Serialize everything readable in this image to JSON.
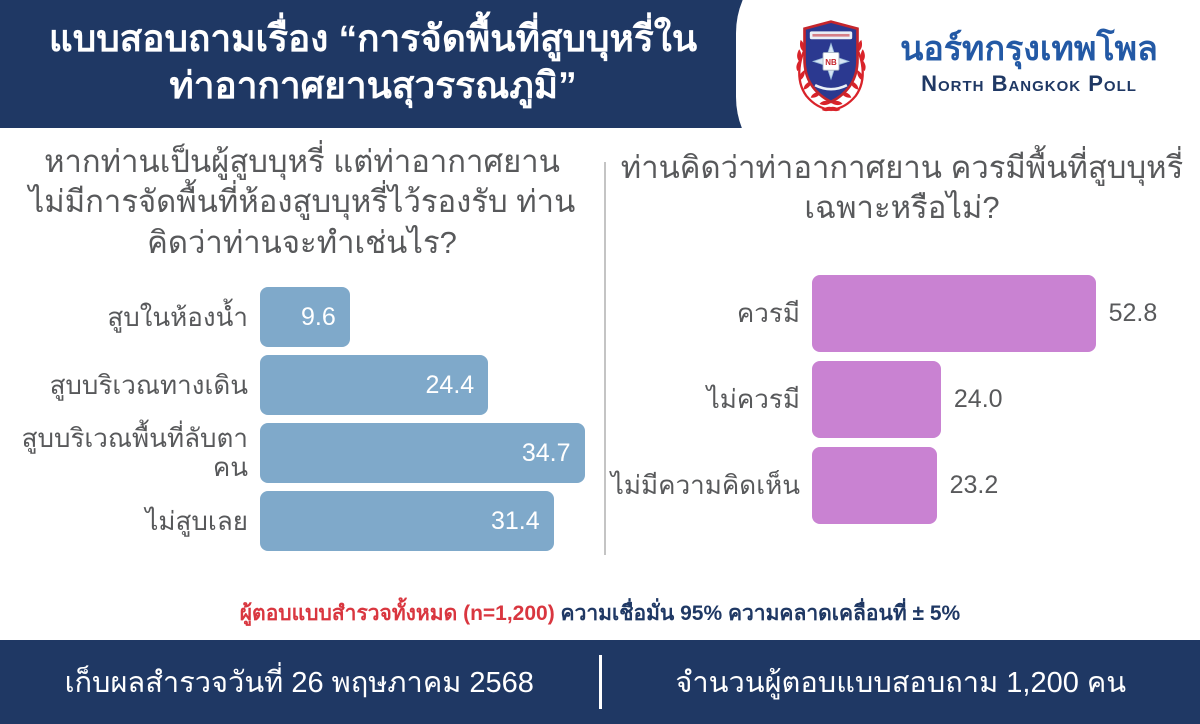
{
  "header": {
    "title_lines": [
      "แบบสอบถามเรื่อง “การจัดพื้นที่สูบบุหรี่ใน",
      "ท่าอากาศยานสุวรรณภูมิ”"
    ],
    "logo": {
      "org_name_thai": "นอร์ทกรุงเทพโพล",
      "org_name_english": "North Bangkok Poll",
      "crest_icon": "university-crest-with-red-laurel-wreath"
    }
  },
  "chart_data": [
    {
      "type": "bar",
      "orientation": "horizontal",
      "title": "หากท่านเป็นผู้สูบบุหรี่ แต่ท่าอากาศยาน ไม่มีการจัดพื้นที่ห้องสูบบุหรี่ไว้รองรับ ท่าน คิดว่าท่านจะทำเช่นไร?",
      "title_lines": [
        "หากท่านเป็นผู้สูบบุหรี่ แต่ท่าอากาศยาน",
        "ไม่มีการจัดพื้นที่ห้องสูบบุหรี่ไว้รองรับ ท่าน",
        "คิดว่าท่านจะทำเช่นไร?"
      ],
      "categories": [
        "สูบในห้องน้ำ",
        "สูบบริเวณทางเดิน",
        "สูบบริเวณพื้นที่ลับตาคน",
        "ไม่สูบเลย"
      ],
      "values": [
        9.6,
        24.4,
        34.7,
        31.4
      ],
      "value_labels": [
        "9.6",
        "24.4",
        "34.7",
        "31.4"
      ],
      "unit": "percent",
      "bar_color": "#7FA9CA",
      "value_label_position": "inside",
      "value_label_color": "#FFFFFF",
      "xlim": [
        0,
        35.5
      ],
      "grid": false,
      "legend": false
    },
    {
      "type": "bar",
      "orientation": "horizontal",
      "title": "ท่านคิดว่าท่าอากาศยาน ควรมีพื้นที่สูบบุหรี่เฉพาะหรือไม่?",
      "title_lines": [
        "ท่านคิดว่าท่าอากาศยาน ควรมีพื้นที่สูบบุหรี่",
        "เฉพาะหรือไม่?"
      ],
      "categories": [
        "ควรมี",
        "ไม่ควรมี",
        "ไม่มีความคิดเห็น"
      ],
      "values": [
        52.8,
        24.0,
        23.2
      ],
      "value_labels": [
        "52.8",
        "24.0",
        "23.2"
      ],
      "unit": "percent",
      "bar_color": "#C982D2",
      "value_label_position": "outside",
      "value_label_color": "#58595B",
      "xlim": [
        0,
        71.5
      ],
      "grid": false,
      "legend": false
    }
  ],
  "footnote": {
    "sample_text": "ผู้ตอบแบบสำรวจทั้งหมด (n=1,200)",
    "confidence_text": "ความเชื่อมั่น 95% ความคลาดเคลื่อนที่ ± 5%"
  },
  "footer": {
    "survey_date_text": "เก็บผลสำรวจวันที่ 26 พฤษภาคม 2568",
    "respondents_text": "จำนวนผู้ตอบแบบสอบถาม 1,200 คน"
  },
  "colors": {
    "navy": "#1F3864",
    "question_gray": "#58595B",
    "left_bar_blue": "#7FA9CA",
    "right_bar_purple": "#C982D2",
    "footnote_red": "#D9363F",
    "logo_blue": "#2359A5",
    "divider_gray": "#C4C4C4"
  }
}
